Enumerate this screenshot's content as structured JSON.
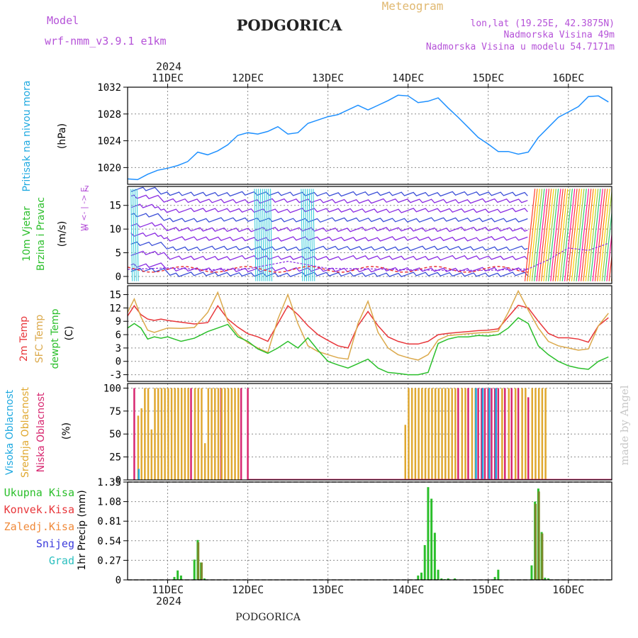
{
  "header": {
    "model_label": "Model",
    "model_name": "wrf-nmm_v3.9.1 e1km",
    "station": "PODGORICA",
    "title": "Meteogram",
    "lonlat": "lon,lat (19.25E, 42.3875N)",
    "elevation": "Nadmorska Visina 49m",
    "model_elevation": "Nadmorska Visina u modelu 54.7171m",
    "footer_station": "PODGORICA",
    "watermark": "made by Angel",
    "year_top": "2024",
    "year_bottom": "2024"
  },
  "time_axis": {
    "day_labels": [
      "11DEC",
      "12DEC",
      "13DEC",
      "14DEC",
      "15DEC",
      "16DEC"
    ],
    "day_start_hours": [
      0,
      24,
      48,
      72,
      96,
      120
    ],
    "range_hours": [
      -12,
      133
    ]
  },
  "chart_data": [
    {
      "type": "line",
      "id": "pressure",
      "ylabel_lines": [
        "Pritisak na nivou mora",
        "(hPa)"
      ],
      "ylim": [
        1017.5,
        1032
      ],
      "yticks": [
        1020,
        1024,
        1028,
        1032
      ],
      "grid": true,
      "series": [
        {
          "color": "#1e90ff",
          "x": [
            -12,
            -9,
            -6,
            -3,
            0,
            3,
            6,
            9,
            12,
            15,
            18,
            21,
            24,
            27,
            30,
            33,
            36,
            39,
            42,
            45,
            48,
            51,
            54,
            57,
            60,
            63,
            66,
            69,
            72,
            75,
            78,
            81,
            84,
            87,
            90,
            93,
            96,
            99,
            102,
            105,
            108,
            111,
            114,
            117,
            120,
            123,
            126,
            129,
            132
          ],
          "y": [
            1018.3,
            1018.2,
            1019.0,
            1019.6,
            1019.9,
            1020.3,
            1020.9,
            1022.3,
            1021.9,
            1022.5,
            1023.4,
            1024.8,
            1025.2,
            1025.0,
            1025.4,
            1026.1,
            1025.0,
            1025.2,
            1026.6,
            1027.1,
            1027.6,
            1027.9,
            1028.6,
            1029.3,
            1028.6,
            1029.3,
            1030.0,
            1030.8,
            1030.7,
            1029.7,
            1029.9,
            1030.4,
            1028.9,
            1027.5,
            1026.0,
            1024.5,
            1023.5,
            1022.4,
            1022.4,
            1022.0,
            1022.3,
            1024.5,
            1026.0,
            1027.5,
            1028.3,
            1029.1,
            1030.6,
            1030.7,
            1029.8
          ]
        }
      ]
    },
    {
      "type": "line",
      "id": "wind",
      "ylabel_lines": [
        "10m Vjetar",
        "Brzina i Pravac",
        "(m/s)"
      ],
      "direction_key": [
        "Z",
        "^",
        "|",
        "W <- -> E",
        "|",
        "v",
        "S"
      ],
      "ylim": [
        -1.5,
        19
      ],
      "yticks": [
        0,
        5,
        10,
        15
      ],
      "grid": true,
      "series": [
        {
          "color": "#8a2be2",
          "x": [
            -12,
            0,
            12,
            24,
            36,
            48,
            60,
            72,
            84,
            96,
            108,
            114,
            120,
            126,
            132
          ],
          "y": [
            1.5,
            1.8,
            1.4,
            1.6,
            3.2,
            1.7,
            1.6,
            1.4,
            1.3,
            1.3,
            1.6,
            3.5,
            6.0,
            5.5,
            7.0
          ]
        }
      ]
    },
    {
      "type": "line",
      "id": "temperature",
      "ylabel_lines": [
        "2m Temp",
        "SFC Temp",
        "dewpt Temp",
        "(C)"
      ],
      "ylim": [
        -4.5,
        17
      ],
      "yticks": [
        -3,
        0,
        3,
        6,
        9,
        12,
        15
      ],
      "grid": true,
      "series": [
        {
          "name": "2m Temp",
          "color": "#e8363a",
          "x": [
            -12,
            -10,
            -8,
            -6,
            -4,
            -2,
            0,
            4,
            8,
            12,
            15,
            18,
            21,
            24,
            27,
            30,
            33,
            36,
            39,
            42,
            45,
            48,
            51,
            54,
            57,
            60,
            63,
            66,
            69,
            72,
            75,
            78,
            81,
            84,
            87,
            90,
            93,
            96,
            99,
            102,
            105,
            108,
            111,
            114,
            117,
            120,
            123,
            126,
            129,
            132
          ],
          "y": [
            10.2,
            12.5,
            10.5,
            9.5,
            9.2,
            9.5,
            9.2,
            8.8,
            8.4,
            8.7,
            12.5,
            9.5,
            7.7,
            6.2,
            5.5,
            4.5,
            8.5,
            12.5,
            10.5,
            8.0,
            6.0,
            4.7,
            3.5,
            3.0,
            8.0,
            11.2,
            8.0,
            5.5,
            4.5,
            3.9,
            3.9,
            4.5,
            6.0,
            6.3,
            6.5,
            6.7,
            6.9,
            7.0,
            7.3,
            10.0,
            12.6,
            12.0,
            9.0,
            6.3,
            5.3,
            5.3,
            5.0,
            4.3,
            8.0,
            9.8
          ]
        },
        {
          "name": "SFC Temp",
          "color": "#dba94b",
          "x": [
            -12,
            -10,
            -8,
            -6,
            -4,
            -2,
            0,
            4,
            8,
            12,
            15,
            18,
            21,
            24,
            27,
            30,
            33,
            36,
            39,
            42,
            45,
            48,
            51,
            54,
            57,
            60,
            63,
            66,
            69,
            72,
            75,
            78,
            81,
            84,
            87,
            90,
            93,
            96,
            99,
            102,
            105,
            108,
            111,
            114,
            117,
            120,
            123,
            126,
            129,
            132
          ],
          "y": [
            11.0,
            14.0,
            10.0,
            7.0,
            6.5,
            7.0,
            7.5,
            7.4,
            7.6,
            11.0,
            15.5,
            9.0,
            6.0,
            4.2,
            3.0,
            2.0,
            9.5,
            15.0,
            8.5,
            3.5,
            2.2,
            1.5,
            0.8,
            0.5,
            8.5,
            13.5,
            6.5,
            3.0,
            1.5,
            0.8,
            0.3,
            1.5,
            4.8,
            5.8,
            6.0,
            6.2,
            6.4,
            6.5,
            6.8,
            11.0,
            15.8,
            11.5,
            7.5,
            4.5,
            3.5,
            3.0,
            2.5,
            2.8,
            8.0,
            10.8
          ]
        },
        {
          "name": "dewpt Temp",
          "color": "#2bbf2b",
          "x": [
            -12,
            -10,
            -8,
            -6,
            -4,
            -2,
            0,
            4,
            8,
            12,
            15,
            18,
            21,
            24,
            27,
            30,
            33,
            36,
            39,
            42,
            45,
            48,
            51,
            54,
            57,
            60,
            63,
            66,
            69,
            72,
            75,
            78,
            81,
            84,
            87,
            90,
            93,
            96,
            99,
            102,
            105,
            108,
            111,
            114,
            117,
            120,
            123,
            126,
            129,
            132
          ],
          "y": [
            7.5,
            8.5,
            7.5,
            5.0,
            5.5,
            5.2,
            5.5,
            4.5,
            5.2,
            6.7,
            7.5,
            8.3,
            5.5,
            4.5,
            2.8,
            1.8,
            3.0,
            4.5,
            3.0,
            5.3,
            2.5,
            0.0,
            -0.8,
            -1.5,
            -0.5,
            0.5,
            -1.5,
            -2.5,
            -2.7,
            -3.0,
            -3.0,
            -2.5,
            4.0,
            5.0,
            5.5,
            5.5,
            5.8,
            5.7,
            6.0,
            7.5,
            9.8,
            8.5,
            3.5,
            1.5,
            0.0,
            -1.0,
            -1.5,
            -1.8,
            0.0,
            1.0
          ]
        }
      ]
    },
    {
      "type": "bar",
      "id": "cloud",
      "ylabel_lines": [
        "Visoka Oblacnost",
        "Srednja Oblacnost",
        "Niska Oblacnost",
        "(%)"
      ],
      "ylim": [
        0,
        105
      ],
      "yticks": [
        0,
        25,
        50,
        75,
        100
      ],
      "grid": true,
      "series": [
        {
          "name": "Niska Oblacnost",
          "color": "#d7266f",
          "x": [
            -10,
            7,
            16,
            22,
            24,
            87,
            90,
            93,
            94,
            95,
            96,
            97,
            98,
            99,
            101,
            103,
            105,
            108
          ],
          "values": [
            100,
            100,
            100,
            100,
            100,
            100,
            100,
            100,
            100,
            100,
            100,
            100,
            100,
            100,
            100,
            100,
            100,
            90
          ]
        },
        {
          "name": "Srednja Oblacnost",
          "color": "#e0a830",
          "x": [
            -9,
            -8,
            -7,
            -6,
            -5,
            -4,
            -3,
            -2,
            -1,
            0,
            1,
            2,
            3,
            4,
            5,
            6,
            8,
            9,
            10,
            11,
            12,
            13,
            14,
            15,
            16,
            17,
            18,
            19,
            20,
            21,
            71,
            72,
            73,
            74,
            75,
            76,
            77,
            78,
            79,
            80,
            81,
            82,
            83,
            84,
            85,
            86,
            88,
            89,
            91,
            92,
            100,
            102,
            104,
            106,
            107,
            109,
            110,
            111,
            112,
            113
          ],
          "values": [
            70,
            78,
            100,
            100,
            55,
            100,
            100,
            100,
            100,
            100,
            100,
            100,
            100,
            100,
            100,
            100,
            100,
            100,
            100,
            40,
            100,
            100,
            100,
            100,
            100,
            100,
            100,
            100,
            100,
            100,
            60,
            100,
            100,
            100,
            100,
            100,
            100,
            100,
            100,
            100,
            100,
            100,
            100,
            100,
            100,
            100,
            100,
            100,
            100,
            100,
            100,
            100,
            100,
            100,
            100,
            100,
            100,
            100,
            100,
            100
          ]
        },
        {
          "name": "Visoka Oblacnost",
          "color": "#1fa9e0",
          "x": [
            -9,
            92,
            94,
            96,
            98
          ],
          "values": [
            12,
            100,
            100,
            100,
            100
          ]
        }
      ]
    },
    {
      "type": "bar",
      "id": "precip",
      "ylabel_lines": [
        "1hr Precip (mm)"
      ],
      "legend": [
        "Ukupna Kisa",
        "Konvek.Kisa",
        "Zaledj.Kisa",
        "Snijeg",
        "Grad"
      ],
      "legend_colors": [
        "#2bbf2b",
        "#e8363a",
        "#f08a3a",
        "#3a3adc",
        "#2bbfbf"
      ],
      "ylim": [
        0,
        1.35
      ],
      "yticks": [
        0,
        0.27,
        0.54,
        0.81,
        1.08,
        1.35
      ],
      "grid": true,
      "series": [
        {
          "name": "Ukupna Kisa",
          "color": "#2bbf2b",
          "x": [
            2,
            3,
            4,
            8,
            9,
            10,
            11,
            75,
            76,
            77,
            78,
            79,
            80,
            81,
            82,
            83,
            84,
            86,
            98,
            99,
            109,
            110,
            111,
            112,
            113,
            114
          ],
          "values": [
            0.04,
            0.13,
            0.06,
            0.28,
            0.55,
            0.24,
            0.02,
            0.06,
            0.1,
            0.48,
            1.28,
            1.12,
            0.65,
            0.14,
            0.02,
            0.01,
            0.02,
            0.02,
            0.04,
            0.14,
            0.2,
            1.08,
            1.26,
            0.66,
            0.03,
            0.02
          ]
        },
        {
          "name": "Konvek.Kisa",
          "color": "#7a8a2a",
          "x": [
            9,
            10,
            110,
            111,
            112
          ],
          "values": [
            0.52,
            0.24,
            1.05,
            1.22,
            0.64
          ]
        }
      ]
    }
  ]
}
